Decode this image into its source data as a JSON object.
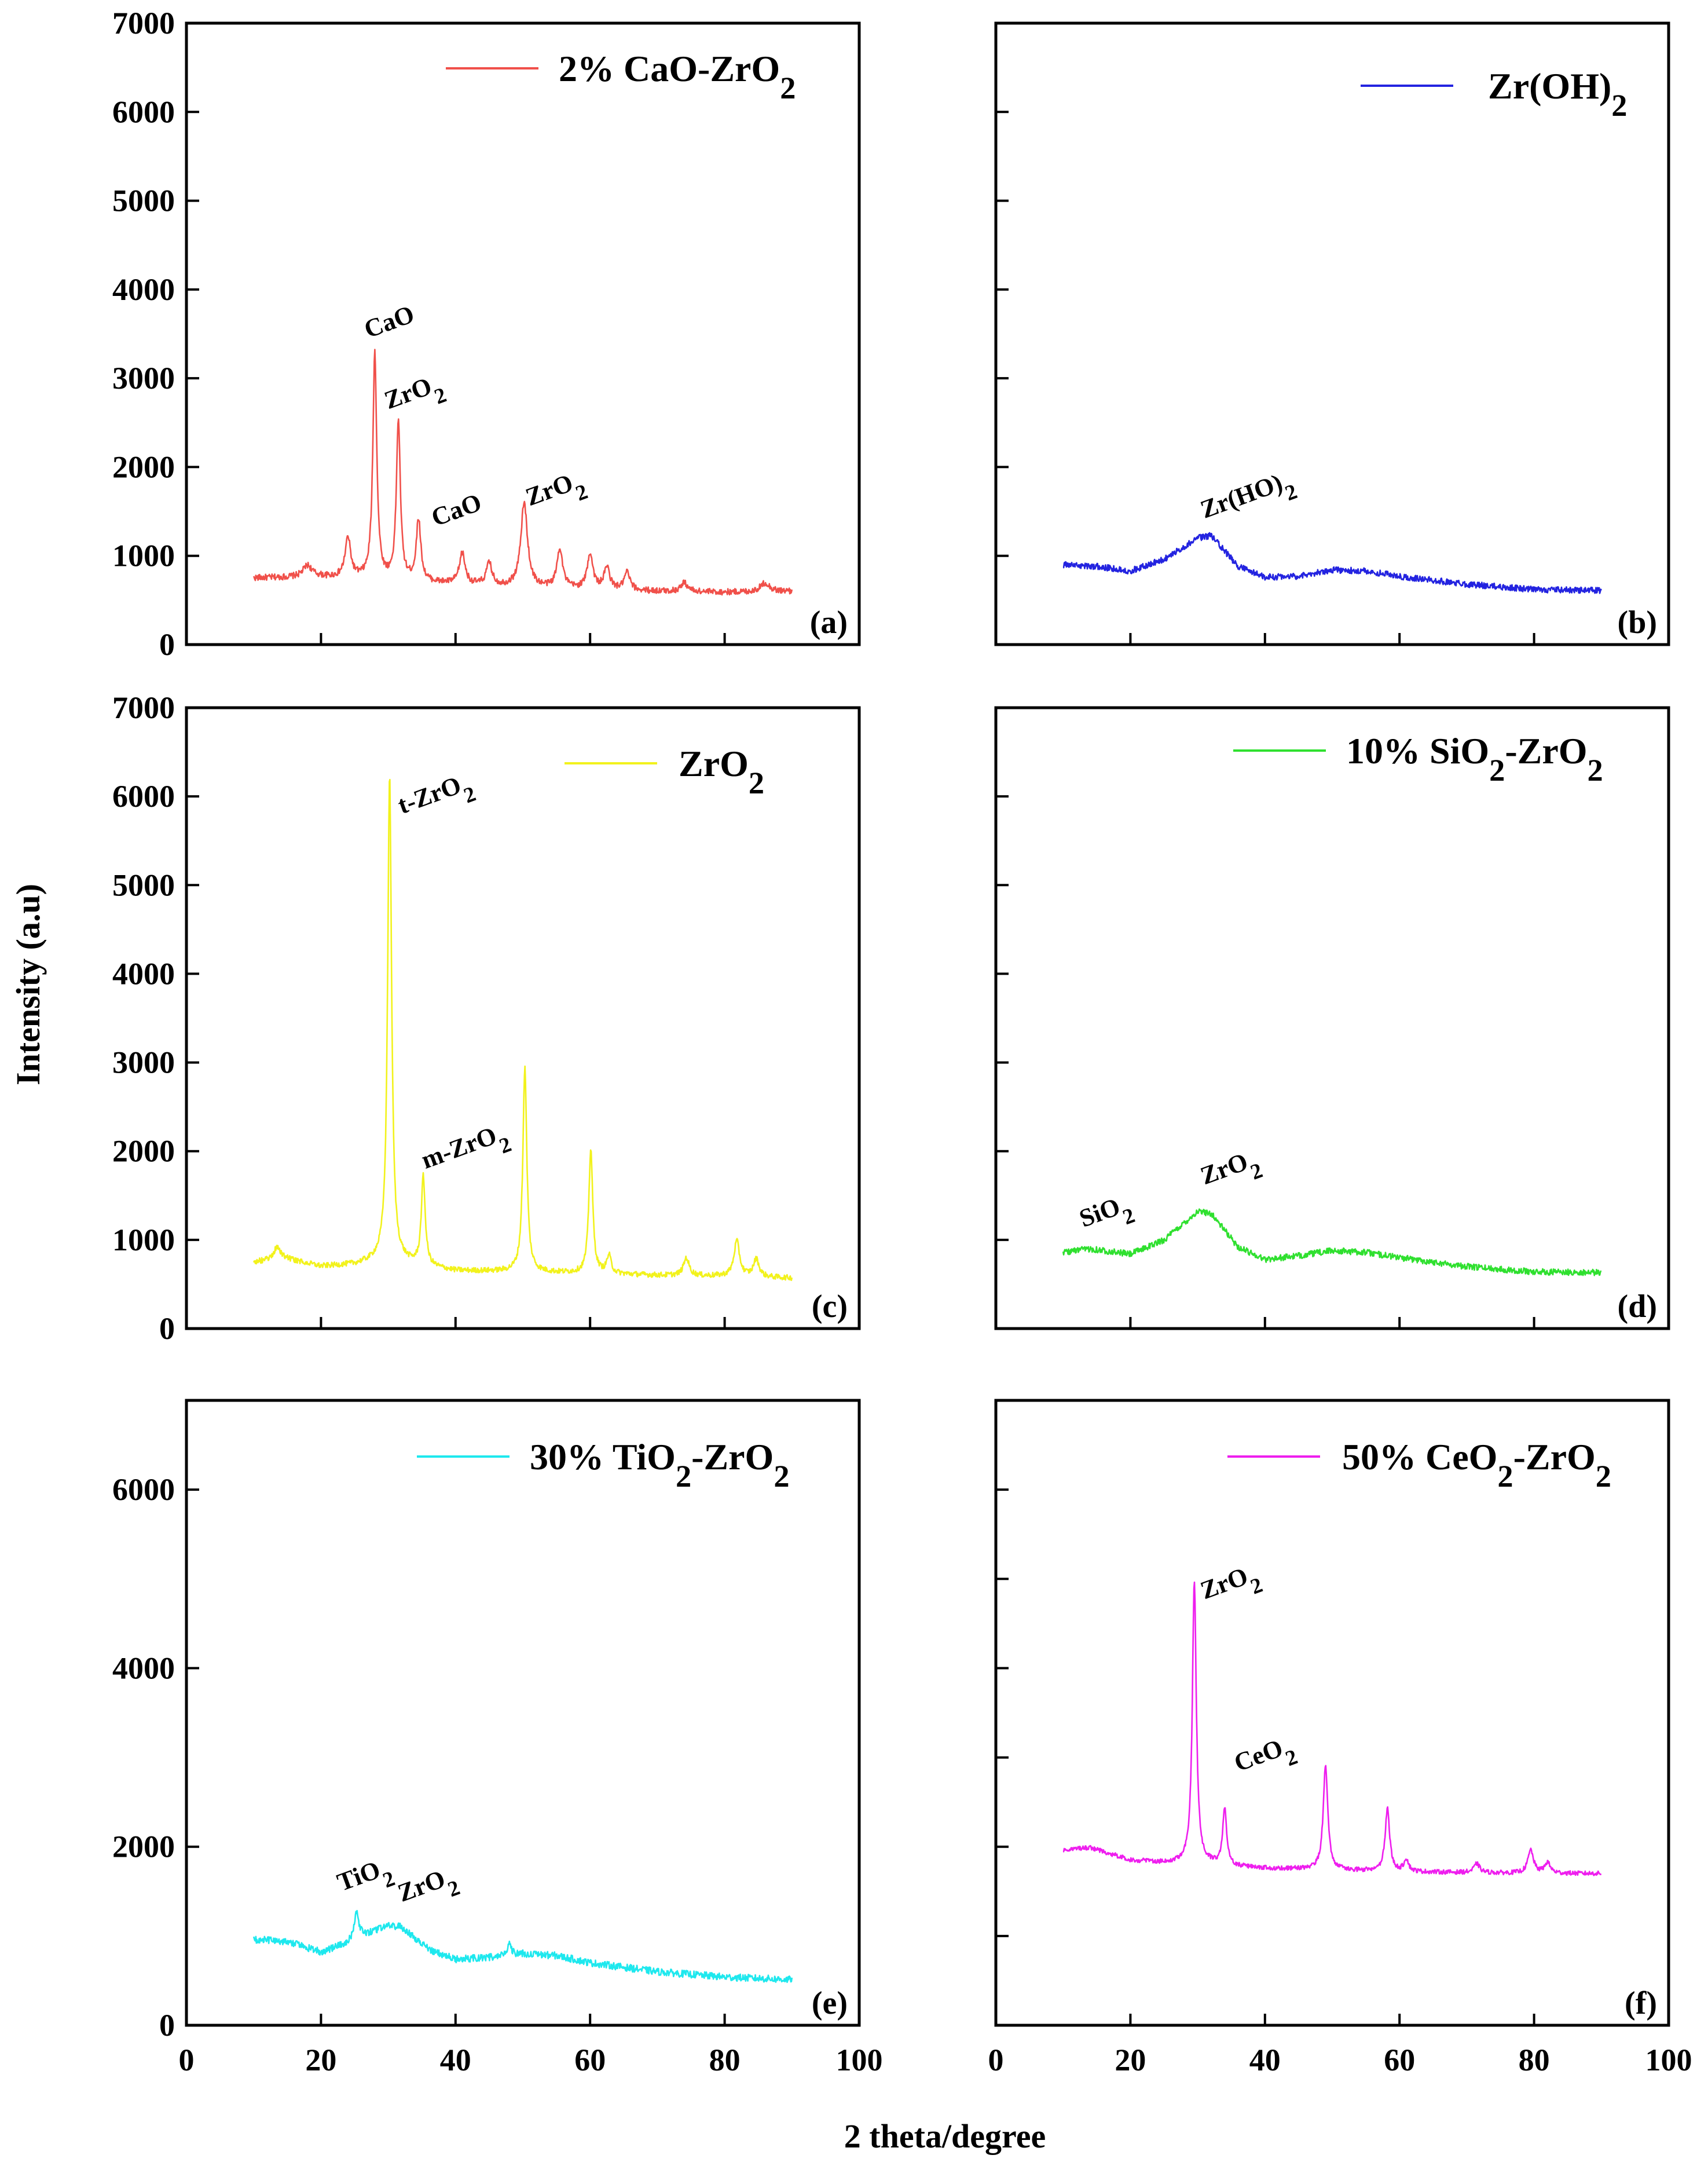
{
  "figure": {
    "ylabel": "Intensity (a.u)",
    "xlabel": "2 theta/degree"
  },
  "chart_data": [
    {
      "type": "line",
      "panel_label": "(a)",
      "legend": "2% CaO-ZrO2",
      "color": "#f0504a",
      "xlim": [
        0,
        100
      ],
      "ylim": [
        0,
        7000
      ],
      "xticks": [
        "0",
        "20",
        "40",
        "60",
        "80",
        "100"
      ],
      "yticks": [
        "0",
        "1000",
        "2000",
        "3000",
        "4000",
        "5000",
        "6000",
        "7000"
      ],
      "show_xtick_labels": false,
      "show_ytick_labels": true,
      "baseline": [
        [
          10,
          750
        ],
        [
          20,
          760
        ],
        [
          30,
          720
        ],
        [
          40,
          680
        ],
        [
          50,
          640
        ],
        [
          60,
          620
        ],
        [
          70,
          600
        ],
        [
          80,
          590
        ],
        [
          90,
          600
        ]
      ],
      "peaks": [
        [
          18,
          130,
          0.8
        ],
        [
          24,
          450,
          0.5
        ],
        [
          28,
          2550,
          0.35
        ],
        [
          31.5,
          1800,
          0.35
        ],
        [
          34.5,
          700,
          0.4
        ],
        [
          41,
          350,
          0.5
        ],
        [
          45,
          250,
          0.5
        ],
        [
          50.2,
          950,
          0.6
        ],
        [
          55.5,
          450,
          0.5
        ],
        [
          60,
          400,
          0.5
        ],
        [
          62.5,
          250,
          0.5
        ],
        [
          65.5,
          200,
          0.5
        ],
        [
          74,
          100,
          0.6
        ],
        [
          86,
          100,
          0.8
        ]
      ],
      "noise": 35,
      "annotations": [
        {
          "text": "CaO",
          "x": 27,
          "y": 3450
        },
        {
          "text": "ZrO2",
          "x": 30,
          "y": 2650
        },
        {
          "text": "CaO",
          "x": 37,
          "y": 1330
        },
        {
          "text": "ZrO2",
          "x": 51,
          "y": 1560
        }
      ]
    },
    {
      "type": "line",
      "panel_label": "(b)",
      "legend": "Zr(OH)2",
      "color": "#2323e0",
      "xlim": [
        0,
        100
      ],
      "ylim": [
        0,
        7000
      ],
      "xticks": [
        "0",
        "20",
        "40",
        "60",
        "80",
        "100"
      ],
      "yticks": [
        "0",
        "1000",
        "2000",
        "3000",
        "4000",
        "5000",
        "6000",
        "7000"
      ],
      "show_xtick_labels": false,
      "show_ytick_labels": false,
      "baseline": [
        [
          10,
          900
        ],
        [
          15,
          880
        ],
        [
          20,
          830
        ],
        [
          25,
          960
        ],
        [
          30,
          1200
        ],
        [
          32,
          1230
        ],
        [
          36,
          880
        ],
        [
          40,
          760
        ],
        [
          45,
          770
        ],
        [
          50,
          840
        ],
        [
          55,
          830
        ],
        [
          60,
          770
        ],
        [
          70,
          680
        ],
        [
          80,
          620
        ],
        [
          90,
          610
        ]
      ],
      "peaks": [],
      "noise": 35,
      "annotations": [
        {
          "text": "Zr(HO)2",
          "x": 31,
          "y": 1420
        }
      ]
    },
    {
      "type": "line",
      "panel_label": "(c)",
      "legend": "ZrO2",
      "color": "#f2f21c",
      "xlim": [
        0,
        100
      ],
      "ylim": [
        0,
        7000
      ],
      "xticks": [
        "0",
        "20",
        "40",
        "60",
        "80",
        "100"
      ],
      "yticks": [
        "0",
        "1000",
        "2000",
        "3000",
        "4000",
        "5000",
        "6000",
        "7000"
      ],
      "show_xtick_labels": false,
      "show_ytick_labels": true,
      "baseline": [
        [
          10,
          750
        ],
        [
          15,
          780
        ],
        [
          20,
          700
        ],
        [
          25,
          720
        ],
        [
          30,
          780
        ],
        [
          35,
          700
        ],
        [
          40,
          650
        ],
        [
          50,
          640
        ],
        [
          60,
          620
        ],
        [
          70,
          600
        ],
        [
          80,
          590
        ],
        [
          90,
          570
        ]
      ],
      "peaks": [
        [
          13.5,
          150,
          0.6
        ],
        [
          30.2,
          5450,
          0.35
        ],
        [
          35.2,
          1000,
          0.35
        ],
        [
          50.3,
          2300,
          0.35
        ],
        [
          60.1,
          1400,
          0.35
        ],
        [
          62.8,
          200,
          0.4
        ],
        [
          74.3,
          200,
          0.5
        ],
        [
          81.8,
          400,
          0.5
        ],
        [
          84.7,
          200,
          0.5
        ]
      ],
      "noise": 30,
      "annotations": [
        {
          "text": "t-ZrO2",
          "x": 32,
          "y": 5800
        },
        {
          "text": "m-ZrO2",
          "x": 35.5,
          "y": 1800
        }
      ]
    },
    {
      "type": "line",
      "panel_label": "(d)",
      "legend": "10% SiO2-ZrO2",
      "color": "#2fe02f",
      "xlim": [
        0,
        100
      ],
      "ylim": [
        0,
        7000
      ],
      "xticks": [
        "0",
        "20",
        "40",
        "60",
        "80",
        "100"
      ],
      "yticks": [
        "0",
        "1000",
        "2000",
        "3000",
        "4000",
        "5000",
        "6000",
        "7000"
      ],
      "show_xtick_labels": false,
      "show_ytick_labels": false,
      "baseline": [
        [
          10,
          860
        ],
        [
          14,
          900
        ],
        [
          20,
          840
        ],
        [
          25,
          1000
        ],
        [
          30,
          1320
        ],
        [
          32,
          1300
        ],
        [
          36,
          920
        ],
        [
          40,
          780
        ],
        [
          45,
          820
        ],
        [
          50,
          880
        ],
        [
          55,
          860
        ],
        [
          60,
          800
        ],
        [
          70,
          700
        ],
        [
          80,
          640
        ],
        [
          90,
          630
        ]
      ],
      "peaks": [],
      "noise": 35,
      "annotations": [
        {
          "text": "SiO2",
          "x": 13,
          "y": 1140
        },
        {
          "text": "ZrO2",
          "x": 31,
          "y": 1620
        }
      ]
    },
    {
      "type": "line",
      "panel_label": "(e)",
      "legend": "30% TiO2-ZrO2",
      "color": "#1ee8ee",
      "xlim": [
        0,
        100
      ],
      "ylim": [
        0,
        7000
      ],
      "xticks": [
        "0",
        "20",
        "40",
        "60",
        "80",
        "100"
      ],
      "yticks": [
        "0",
        "2000",
        "4000",
        "6000"
      ],
      "show_xtick_labels": true,
      "show_ytick_labels": true,
      "baseline": [
        [
          10,
          960
        ],
        [
          15,
          940
        ],
        [
          20,
          820
        ],
        [
          25,
          950
        ],
        [
          30,
          1120
        ],
        [
          32,
          1100
        ],
        [
          36,
          850
        ],
        [
          40,
          740
        ],
        [
          45,
          760
        ],
        [
          50,
          800
        ],
        [
          55,
          780
        ],
        [
          60,
          700
        ],
        [
          70,
          600
        ],
        [
          80,
          540
        ],
        [
          90,
          510
        ]
      ],
      "peaks": [
        [
          25.3,
          330,
          0.4
        ],
        [
          48,
          120,
          0.4
        ]
      ],
      "noise": 40,
      "annotations": [
        {
          "text": "TiO2",
          "x": 23,
          "y": 1500
        },
        {
          "text": "ZrO2",
          "x": 32,
          "y": 1380
        }
      ]
    },
    {
      "type": "line",
      "panel_label": "(f)",
      "legend": "50% CeO2-ZrO2",
      "color": "#ee1eee",
      "xlim": [
        0,
        100
      ],
      "ylim": [
        0,
        7000
      ],
      "xticks": [
        "0",
        "20",
        "40",
        "60",
        "80",
        "100"
      ],
      "yticks": [
        "0",
        "1000",
        "2000",
        "3000",
        "4000",
        "5000",
        "6000",
        "7000"
      ],
      "show_xtick_labels": true,
      "show_ytick_labels": false,
      "baseline": [
        [
          10,
          1960
        ],
        [
          14,
          1990
        ],
        [
          20,
          1850
        ],
        [
          25,
          1820
        ],
        [
          30,
          1820
        ],
        [
          35,
          1780
        ],
        [
          40,
          1760
        ],
        [
          50,
          1740
        ],
        [
          60,
          1720
        ],
        [
          70,
          1710
        ],
        [
          80,
          1700
        ],
        [
          90,
          1700
        ]
      ],
      "peaks": [
        [
          29.5,
          3150,
          0.35
        ],
        [
          34,
          650,
          0.35
        ],
        [
          49,
          1180,
          0.4
        ],
        [
          58.2,
          700,
          0.4
        ],
        [
          61,
          140,
          0.4
        ],
        [
          71.5,
          100,
          0.5
        ],
        [
          79.5,
          260,
          0.5
        ],
        [
          82,
          120,
          0.5
        ]
      ],
      "noise": 25,
      "annotations": [
        {
          "text": "ZrO2",
          "x": 31,
          "y": 4770
        },
        {
          "text": "CeO2",
          "x": 36,
          "y": 2840
        }
      ]
    }
  ]
}
